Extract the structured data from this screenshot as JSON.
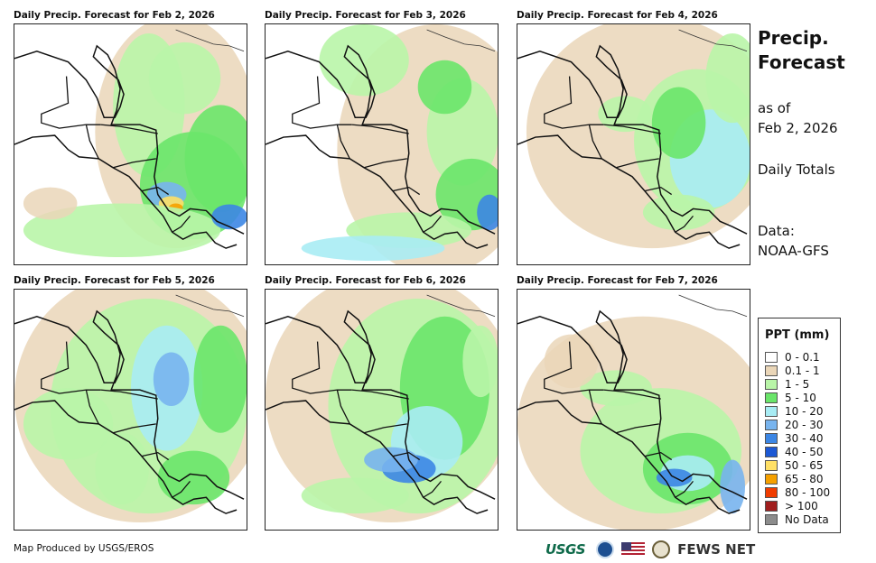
{
  "panels": [
    {
      "title": "Daily Precip. Forecast for Feb 2, 2026"
    },
    {
      "title": "Daily Precip. Forecast for Feb 3, 2026"
    },
    {
      "title": "Daily Precip. Forecast for Feb 4, 2026"
    },
    {
      "title": "Daily Precip. Forecast for Feb 5, 2026"
    },
    {
      "title": "Daily Precip. Forecast for Feb 6, 2026"
    },
    {
      "title": "Daily Precip. Forecast for Feb 7, 2026"
    }
  ],
  "info": {
    "title_line1": "Precip.",
    "title_line2": "Forecast",
    "asof_label": "as of",
    "asof_date": "Feb 2, 2026",
    "totals": "Daily Totals",
    "data_label": "Data:",
    "data_source": "NOAA-GFS"
  },
  "legend": {
    "title": "PPT (mm)",
    "items": [
      {
        "label": "0 - 0.1",
        "color": "#ffffff"
      },
      {
        "label": "0.1 - 1",
        "color": "#ead6b8"
      },
      {
        "label": "1 - 5",
        "color": "#b9f5a8"
      },
      {
        "label": "5 - 10",
        "color": "#6ae56a"
      },
      {
        "label": "10 - 20",
        "color": "#a8ecf4"
      },
      {
        "label": "20 - 30",
        "color": "#78b4ee"
      },
      {
        "label": "30 - 40",
        "color": "#3c86e4"
      },
      {
        "label": "40 - 50",
        "color": "#1c58d4"
      },
      {
        "label": "50 - 65",
        "color": "#ffe066"
      },
      {
        "label": "65 - 80",
        "color": "#f5a000"
      },
      {
        "label": "80 - 100",
        "color": "#f03c00"
      },
      {
        "label": "> 100",
        "color": "#a01e1e"
      },
      {
        "label": "No Data",
        "color": "#8c8c8c"
      }
    ]
  },
  "footer": {
    "credit": "Map Produced by USGS/EROS",
    "usgs_logo": "USGS",
    "fews_logo": "FEWS NET"
  }
}
